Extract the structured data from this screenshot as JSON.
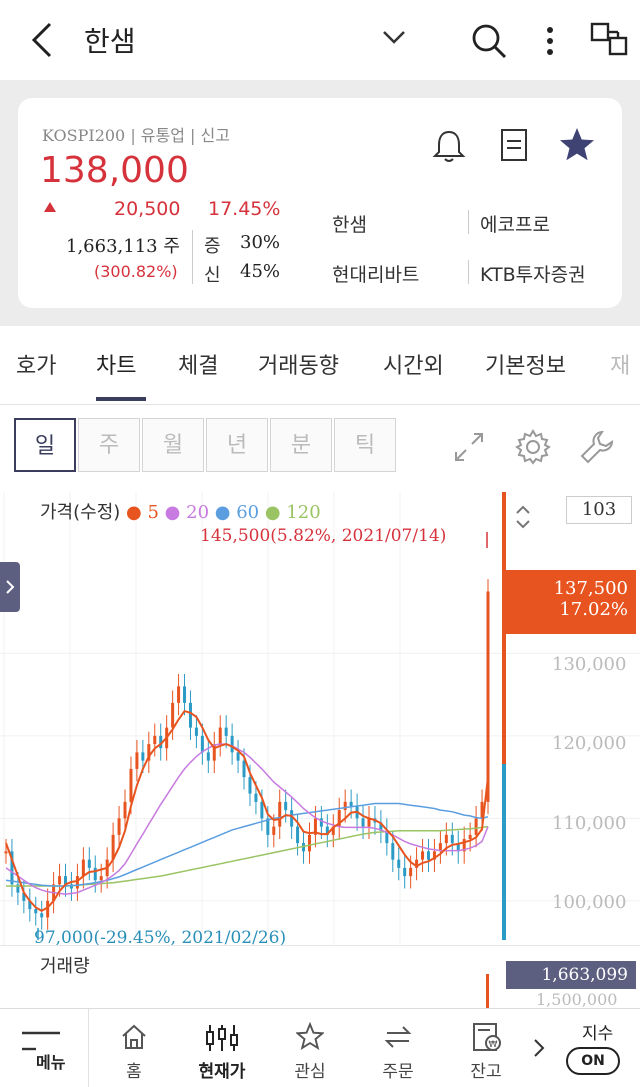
{
  "header": {
    "title": "한샘"
  },
  "stock": {
    "market_info": "KOSPI200 | 유통업 | 신고",
    "price": "138,000",
    "change": "20,500",
    "change_pct": "17.45%",
    "volume": "1,663,113 주",
    "volume_ratio": "(300.82%)",
    "margin_label_1": "증",
    "margin_value_1": "30%",
    "margin_label_2": "신",
    "margin_value_2": "45%",
    "brokers": [
      "한샘",
      "에코프로",
      "현대리바트",
      "KTB투자증권"
    ]
  },
  "tabs": [
    "호가",
    "차트",
    "체결",
    "거래동향",
    "시간외",
    "기본정보",
    "재"
  ],
  "periods": [
    "일",
    "주",
    "월",
    "년",
    "분",
    "틱"
  ],
  "chart_data": {
    "type": "line",
    "legend_label": "가격(수정)",
    "legend": [
      {
        "name": "5",
        "color": "#e8541f"
      },
      {
        "name": "20",
        "color": "#c77ae0"
      },
      {
        "name": "60",
        "color": "#5b9ee0"
      },
      {
        "name": "120",
        "color": "#9ac463"
      }
    ],
    "high_annotation": "145,500(5.82%, 2021/07/14)",
    "low_annotation": "97,000(-29.45%, 2021/02/26)",
    "current_price": "137,500",
    "current_pct": "17.02%",
    "y_ticks": [
      "130,000",
      "120,000",
      "110,000",
      "100,000"
    ],
    "y_range": [
      95500,
      143500
    ],
    "scale_value": "103",
    "volume_label": "거래량",
    "volume_value": "1,663,099",
    "volume_tick": "1,500,000",
    "close": [
      106000,
      102000,
      101000,
      100000,
      99000,
      98500,
      98000,
      100000,
      102000,
      103000,
      102000,
      101500,
      103000,
      105000,
      104000,
      102500,
      103000,
      105000,
      108000,
      110000,
      112000,
      116000,
      118000,
      117000,
      119000,
      120000,
      118500,
      121000,
      124000,
      126000,
      124000,
      121000,
      120000,
      118000,
      117000,
      119000,
      121000,
      120000,
      118000,
      117000,
      115000,
      113000,
      112000,
      110000,
      108000,
      109000,
      112000,
      111000,
      109000,
      107000,
      106000,
      108000,
      110000,
      109000,
      108000,
      109000,
      111000,
      112000,
      111500,
      110000,
      109000,
      110000,
      109500,
      108500,
      107000,
      105000,
      104000,
      103000,
      104000,
      105000,
      106000,
      105000,
      106000,
      107000,
      108000,
      107000,
      106000,
      107500,
      108000,
      110000,
      112000,
      137500
    ],
    "ma5": [
      107000,
      105000,
      103000,
      101000,
      100000,
      99200,
      98800,
      99200,
      100000,
      101200,
      102000,
      102300,
      102400,
      103000,
      103500,
      103600,
      103800,
      104000,
      105000,
      106500,
      108500,
      111500,
      114000,
      116000,
      117500,
      118500,
      119000,
      119800,
      120800,
      122000,
      123000,
      122800,
      122300,
      121000,
      119500,
      118500,
      118800,
      119000,
      118700,
      118200,
      117500,
      115500,
      114000,
      112500,
      110500,
      109800,
      109900,
      110400,
      110300,
      109500,
      108400,
      108200,
      108300,
      108100,
      108100,
      108900,
      109400,
      110000,
      110700,
      110800,
      110300,
      110000,
      109800,
      109400,
      108600,
      107800,
      106700,
      105600,
      104700,
      104200,
      104600,
      104800,
      105200,
      105700,
      106400,
      106800,
      106900,
      107100,
      107300,
      107700,
      108700,
      115000
    ],
    "ma20": [
      104000,
      103500,
      103000,
      102500,
      102000,
      101600,
      101300,
      101100,
      101000,
      100900,
      100800,
      100900,
      101000,
      101300,
      101600,
      101900,
      102200,
      102600,
      103100,
      103700,
      104500,
      105700,
      106900,
      108100,
      109300,
      110500,
      111700,
      112800,
      113900,
      115000,
      116000,
      116800,
      117500,
      118100,
      118500,
      118900,
      119000,
      119000,
      118800,
      118400,
      118000,
      117400,
      116700,
      116000,
      115200,
      114400,
      113800,
      113200,
      112600,
      111900,
      111200,
      110600,
      110100,
      109700,
      109400,
      109200,
      109000,
      108900,
      108900,
      108900,
      108900,
      108900,
      108800,
      108600,
      108300,
      108000,
      107600,
      107200,
      106900,
      106700,
      106500,
      106300,
      106200,
      106100,
      106100,
      106100,
      106100,
      106200,
      106400,
      106700,
      107200,
      109000
    ],
    "ma60": [
      102500,
      102400,
      102300,
      102200,
      102100,
      102000,
      101900,
      101850,
      101800,
      101800,
      101800,
      101850,
      101900,
      102000,
      102100,
      102200,
      102350,
      102500,
      102700,
      102900,
      103200,
      103500,
      103800,
      104100,
      104400,
      104700,
      105000,
      105300,
      105600,
      105900,
      106200,
      106500,
      106800,
      107100,
      107400,
      107700,
      108000,
      108300,
      108600,
      108800,
      109000,
      109200,
      109400,
      109600,
      109800,
      110000,
      110100,
      110300,
      110400,
      110500,
      110600,
      110700,
      110800,
      110900,
      111000,
      111100,
      111200,
      111300,
      111400,
      111500,
      111600,
      111700,
      111800,
      111800,
      111800,
      111800,
      111800,
      111700,
      111600,
      111500,
      111400,
      111300,
      111200,
      111000,
      110900,
      110800,
      110600,
      110400,
      110300,
      110100,
      110000,
      110200
    ],
    "ma120": [
      101800,
      101800,
      101800,
      101800,
      101800,
      101800,
      101800,
      101800,
      101800,
      101800,
      101800,
      101850,
      101900,
      101950,
      102000,
      102050,
      102100,
      102150,
      102200,
      102300,
      102400,
      102500,
      102600,
      102700,
      102800,
      102900,
      103000,
      103150,
      103300,
      103450,
      103600,
      103750,
      103900,
      104050,
      104200,
      104350,
      104500,
      104650,
      104800,
      104950,
      105100,
      105250,
      105400,
      105550,
      105700,
      105850,
      106000,
      106150,
      106300,
      106450,
      106600,
      106750,
      106900,
      107050,
      107200,
      107350,
      107500,
      107650,
      107800,
      107950,
      108100,
      108200,
      108300,
      108350,
      108400,
      108450,
      108500,
      108500,
      108500,
      108500,
      108500,
      108500,
      108500,
      108500,
      108550,
      108600,
      108650,
      108700,
      108750,
      108800,
      108900,
      109000
    ]
  },
  "bottom_nav": {
    "menu": "메뉴",
    "items": [
      "홈",
      "현재가",
      "관심",
      "주문",
      "잔고"
    ],
    "index_label": "지수",
    "index_toggle": "ON"
  },
  "colors": {
    "up": "#d6323b",
    "accent": "#3a3d5c",
    "price_box": "#e8541f",
    "volume_box": "#5c5f80"
  }
}
